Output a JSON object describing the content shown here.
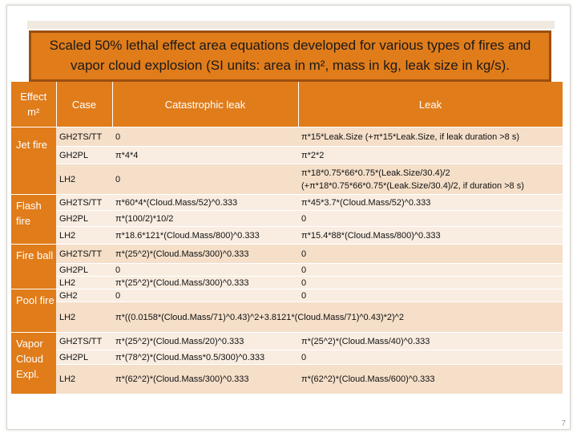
{
  "title": "Scaled 50% lethal effect area equations developed for various types of fires and vapor cloud explosion (SI units: area in m², mass in kg, leak size in kg/s).",
  "headers": {
    "effect_line1": "Effect",
    "effect_line2": "m²",
    "case": "Case",
    "catastrophic": "Catastrophic leak",
    "leak": "Leak"
  },
  "groups": [
    {
      "type": "Jet fire",
      "rows": [
        {
          "case": "GH2TS/TT",
          "cat": "0",
          "leak": "π*15*Leak.Size (+π*15*Leak.Size, if leak duration >8 s)"
        },
        {
          "case": "GH2PL",
          "cat": "π*4*4",
          "leak": "π*2*2"
        },
        {
          "case": "LH2",
          "cat": "0",
          "leak": "π*18*0.75*66*0.75*(Leak.Size/30.4)/2",
          "leak2": "(+π*18*0.75*66*0.75*(Leak.Size/30.4)/2, if duration >8 s)"
        }
      ]
    },
    {
      "type": "Flash fire",
      "rows": [
        {
          "case": "GH2TS/TT",
          "cat": "π*60*4*(Cloud.Mass/52)^0.333",
          "leak": "π*45*3.7*(Cloud.Mass/52)^0.333"
        },
        {
          "case": "GH2PL",
          "cat": "π*(100/2)*10/2",
          "leak": "0"
        },
        {
          "case": "LH2",
          "cat": "π*18.6*121*(Cloud.Mass/800)^0.333",
          "leak": "π*15.4*88*(Cloud.Mass/800)^0.333"
        }
      ]
    },
    {
      "type": "Fire ball",
      "rows": [
        {
          "case": "GH2TS/TT",
          "cat": "π*(25^2)*(Cloud.Mass/300)^0.333",
          "leak": "0"
        },
        {
          "case": "GH2PL",
          "cat": "0",
          "leak": "0"
        },
        {
          "case": "LH2",
          "cat": "π*(25^2)*(Cloud.Mass/300)^0.333",
          "leak": "0"
        }
      ]
    },
    {
      "type": "Pool fire",
      "rows": [
        {
          "case": "GH2",
          "cat": "0",
          "leak": "0"
        },
        {
          "case": "LH2",
          "cat": "π*((0.0158*(Cloud.Mass/71)^0.43)^2+3.8121*(Cloud.Mass/71)^0.43)*2)^2",
          "leak": ""
        }
      ]
    },
    {
      "type": "Vapor Cloud Expl.",
      "rows": [
        {
          "case": "GH2TS/TT",
          "cat": "π*(25^2)*(Cloud.Mass/20)^0.333",
          "leak": "π*(25^2)*(Cloud.Mass/40)^0.333"
        },
        {
          "case": "GH2PL",
          "cat": "π*(78^2)*(Cloud.Mass*0.5/300)^0.333",
          "leak": "0"
        },
        {
          "case": "LH2",
          "cat": "π*(62^2)*(Cloud.Mass/300)^0.333",
          "leak": "π*(62^2)*(Cloud.Mass/600)^0.333"
        }
      ]
    }
  ],
  "page_number": "7",
  "colors": {
    "accent": "#e07c1a",
    "row_odd": "#f5dfc9",
    "row_even": "#f9ede1"
  }
}
